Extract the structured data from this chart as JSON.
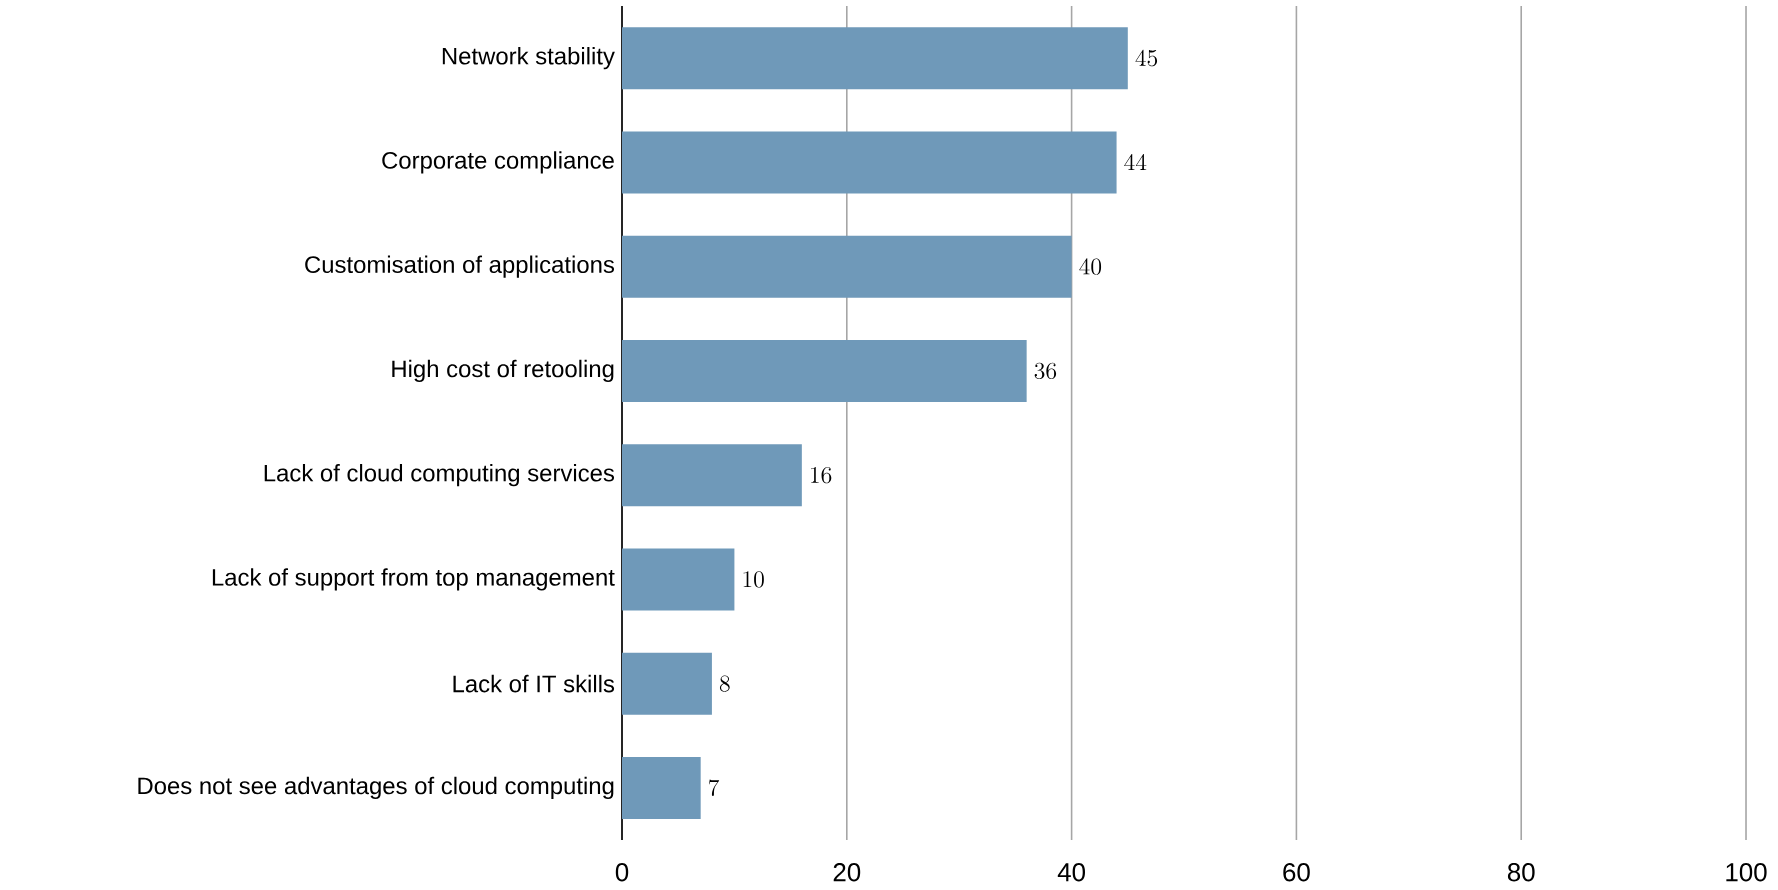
{
  "chart_data": {
    "type": "bar",
    "orientation": "horizontal",
    "categories": [
      "Network stability",
      "Corporate compliance",
      "Customisation of applications",
      "High cost of retooling",
      "Lack of cloud computing services",
      "Lack of support from top management",
      "Lack of IT skills",
      "Does not see advantages of cloud computing"
    ],
    "values": [
      45,
      44,
      40,
      36,
      16,
      10,
      8,
      7
    ],
    "color": "#6f99b9",
    "xlim": [
      0,
      100
    ],
    "xticks": [
      0,
      20,
      40,
      60,
      80,
      100
    ],
    "grid": "x",
    "data_labels": true
  }
}
